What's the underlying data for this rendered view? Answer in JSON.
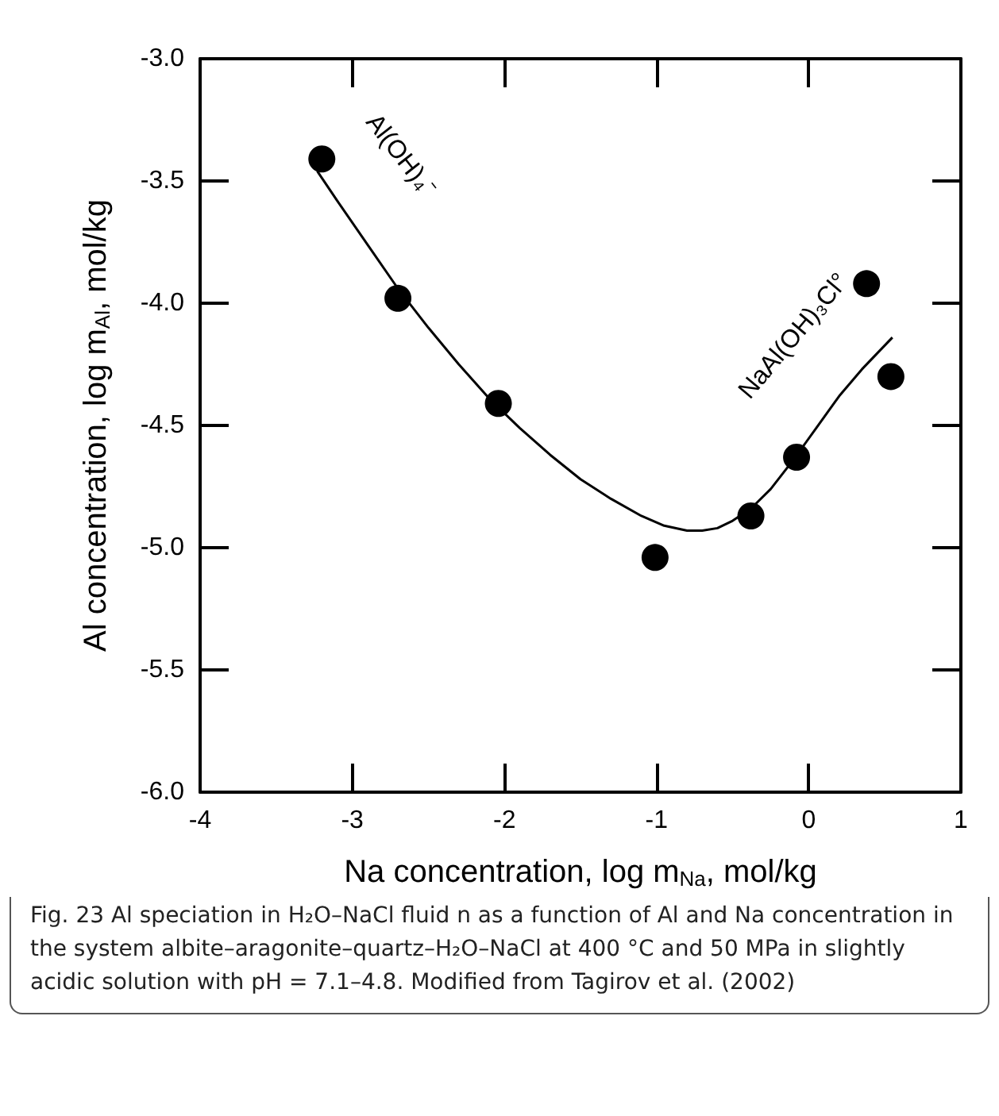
{
  "chart_data": {
    "type": "scatter",
    "xlabel": "Na concentration, log m$_{Na}$, mol/kg",
    "ylabel": "Al concentration, log m$_{Al}$, mol/kg",
    "xlim": [
      -4,
      1
    ],
    "xticks": [
      -4,
      -3,
      -2,
      -1,
      0,
      1
    ],
    "ylim": [
      -6,
      -3
    ],
    "yticks": [
      {
        "value": -6,
        "label": "-6.0"
      },
      {
        "value": -5.5,
        "label": "-5.5"
      },
      {
        "value": -5,
        "label": "-5.0"
      },
      {
        "value": -4.5,
        "label": "-4.5"
      },
      {
        "value": -4,
        "label": "-4.0"
      },
      {
        "value": -3.5,
        "label": "-3.5"
      },
      {
        "value": -3,
        "label": "-3.0"
      }
    ],
    "grid": false,
    "series": [
      {
        "color": "#000000",
        "marker": "circle",
        "x": [
          -3.2,
          -2.7,
          -2.04,
          -1.01,
          -0.38,
          -0.08,
          0.38,
          0.54
        ],
        "values": [
          -3.41,
          -3.98,
          -4.41,
          -5.04,
          -4.87,
          -4.63,
          -3.92,
          -4.3
        ]
      },
      {
        "type": "line",
        "color": "#000000",
        "marker": "none",
        "line_style": "solid",
        "x": [
          -3.23,
          -3.1,
          -2.9,
          -2.7,
          -2.5,
          -2.3,
          -2.1,
          -1.9,
          -1.7,
          -1.5,
          -1.3,
          -1.1,
          -0.95,
          -0.8,
          -0.7,
          -0.6,
          -0.5,
          -0.38,
          -0.25,
          -0.1,
          0.05,
          0.2,
          0.35,
          0.55
        ],
        "values": [
          -3.46,
          -3.58,
          -3.76,
          -3.94,
          -4.1,
          -4.25,
          -4.39,
          -4.51,
          -4.62,
          -4.72,
          -4.8,
          -4.87,
          -4.91,
          -4.93,
          -4.93,
          -4.92,
          -4.89,
          -4.84,
          -4.76,
          -4.64,
          -4.51,
          -4.38,
          -4.27,
          -4.14
        ]
      }
    ],
    "annotations": [
      "Al(OH)₄⁻",
      "NaAl(OH)₃Cl°",
      "Fig. 23  Al speciation in H₂O–NaCl fluid n as a function of Al and Na concentration in the system albite–aragonite–quartz–H₂O–NaCl at 400 °C and 50 MPa in slightly acidic solution with pH = 7.1–4.8. Modified from Tagirov et al. (2002)"
    ]
  }
}
